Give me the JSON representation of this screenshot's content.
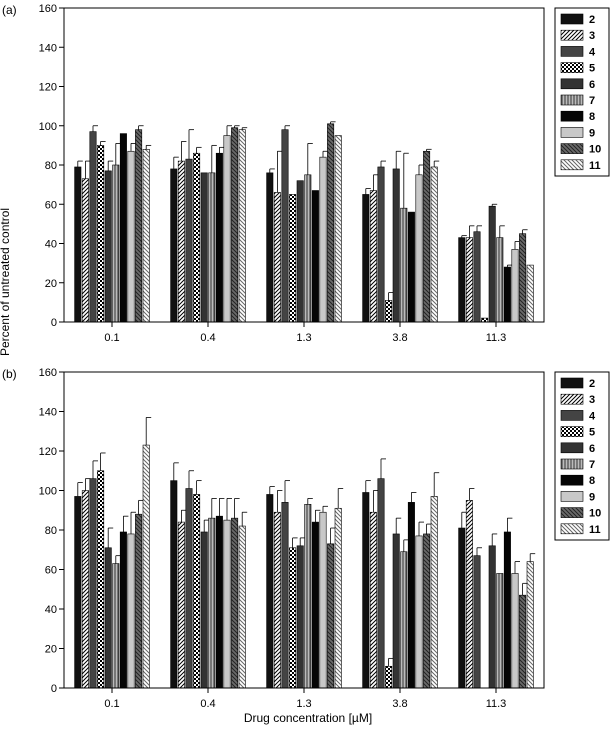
{
  "ylabel": "Percent of untreated control",
  "xlabel": "Drug concentration [µM]",
  "chart_data": [
    {
      "panel": "(a)",
      "type": "bar",
      "categories": [
        "0.1",
        "0.4",
        "1.3",
        "3.8",
        "11.3"
      ],
      "ylim": [
        0,
        160
      ],
      "yticks": [
        0,
        20,
        40,
        60,
        80,
        100,
        120,
        140,
        160
      ],
      "legend_position": "right",
      "series": [
        {
          "name": "2",
          "values": [
            79,
            78,
            76,
            65,
            43
          ],
          "errors": [
            3,
            6,
            2,
            3,
            1
          ]
        },
        {
          "name": "3",
          "values": [
            73,
            82,
            66,
            67,
            43
          ],
          "errors": [
            9,
            10,
            21,
            8,
            6
          ]
        },
        {
          "name": "4",
          "values": [
            97,
            83,
            98,
            79,
            46
          ],
          "errors": [
            3,
            15,
            2,
            3,
            3
          ]
        },
        {
          "name": "5",
          "values": [
            90,
            86,
            65,
            11,
            2
          ],
          "errors": [
            2,
            3,
            0,
            4,
            0
          ]
        },
        {
          "name": "6",
          "values": [
            77,
            76,
            72,
            78,
            59
          ],
          "errors": [
            5,
            0,
            0,
            9,
            1
          ]
        },
        {
          "name": "7",
          "values": [
            80,
            76,
            75,
            58,
            43
          ],
          "errors": [
            11,
            14,
            16,
            28,
            6
          ]
        },
        {
          "name": "8",
          "values": [
            96,
            86,
            67,
            56,
            28
          ],
          "errors": [
            0,
            3,
            0,
            0,
            1
          ]
        },
        {
          "name": "9",
          "values": [
            87,
            95,
            84,
            75,
            37
          ],
          "errors": [
            4,
            5,
            3,
            5,
            4
          ]
        },
        {
          "name": "10",
          "values": [
            98,
            99,
            101,
            87,
            45
          ],
          "errors": [
            2,
            1,
            1,
            1,
            2
          ]
        },
        {
          "name": "11",
          "values": [
            88,
            98,
            95,
            79,
            29
          ],
          "errors": [
            2,
            1,
            0,
            3,
            0
          ]
        }
      ]
    },
    {
      "panel": "(b)",
      "type": "bar",
      "categories": [
        "0.1",
        "0.4",
        "1.3",
        "3.8",
        "11.3"
      ],
      "ylim": [
        0,
        160
      ],
      "yticks": [
        0,
        20,
        40,
        60,
        80,
        100,
        120,
        140,
        160
      ],
      "legend_position": "right",
      "series": [
        {
          "name": "2",
          "values": [
            97,
            105,
            98,
            99,
            81
          ],
          "errors": [
            7,
            9,
            4,
            6,
            8
          ]
        },
        {
          "name": "3",
          "values": [
            100,
            84,
            89,
            89,
            95
          ],
          "errors": [
            6,
            6,
            11,
            11,
            6
          ]
        },
        {
          "name": "4",
          "values": [
            106,
            101,
            94,
            106,
            67
          ],
          "errors": [
            9,
            9,
            11,
            10,
            4
          ]
        },
        {
          "name": "5",
          "values": [
            110,
            98,
            71,
            11,
            0
          ],
          "errors": [
            9,
            7,
            5,
            4,
            0
          ]
        },
        {
          "name": "6",
          "values": [
            71,
            79,
            72,
            78,
            72
          ],
          "errors": [
            10,
            6,
            4,
            8,
            6
          ]
        },
        {
          "name": "7",
          "values": [
            63,
            86,
            93,
            69,
            58
          ],
          "errors": [
            4,
            10,
            3,
            6,
            0
          ]
        },
        {
          "name": "8",
          "values": [
            79,
            87,
            84,
            94,
            79
          ],
          "errors": [
            8,
            9,
            6,
            5,
            7
          ]
        },
        {
          "name": "9",
          "values": [
            78,
            85,
            89,
            77,
            58
          ],
          "errors": [
            11,
            11,
            3,
            7,
            6
          ]
        },
        {
          "name": "10",
          "values": [
            88,
            86,
            73,
            78,
            47
          ],
          "errors": [
            7,
            10,
            8,
            5,
            6
          ]
        },
        {
          "name": "11",
          "values": [
            123,
            82,
            91,
            97,
            64
          ],
          "errors": [
            14,
            7,
            10,
            12,
            4
          ]
        }
      ]
    }
  ]
}
